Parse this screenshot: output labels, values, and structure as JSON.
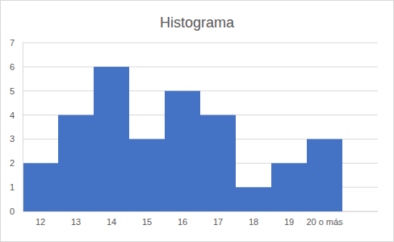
{
  "chart_data": {
    "type": "bar",
    "title": "Histograma",
    "categories": [
      "12",
      "13",
      "14",
      "15",
      "16",
      "17",
      "18",
      "19",
      "20 o más"
    ],
    "values": [
      2,
      4,
      6,
      3,
      5,
      4,
      1,
      2,
      3
    ],
    "color": "#4472c4",
    "ylim": [
      0,
      7
    ],
    "yticks": [
      0,
      1,
      2,
      3,
      4,
      5,
      6,
      7
    ],
    "grid": true
  }
}
